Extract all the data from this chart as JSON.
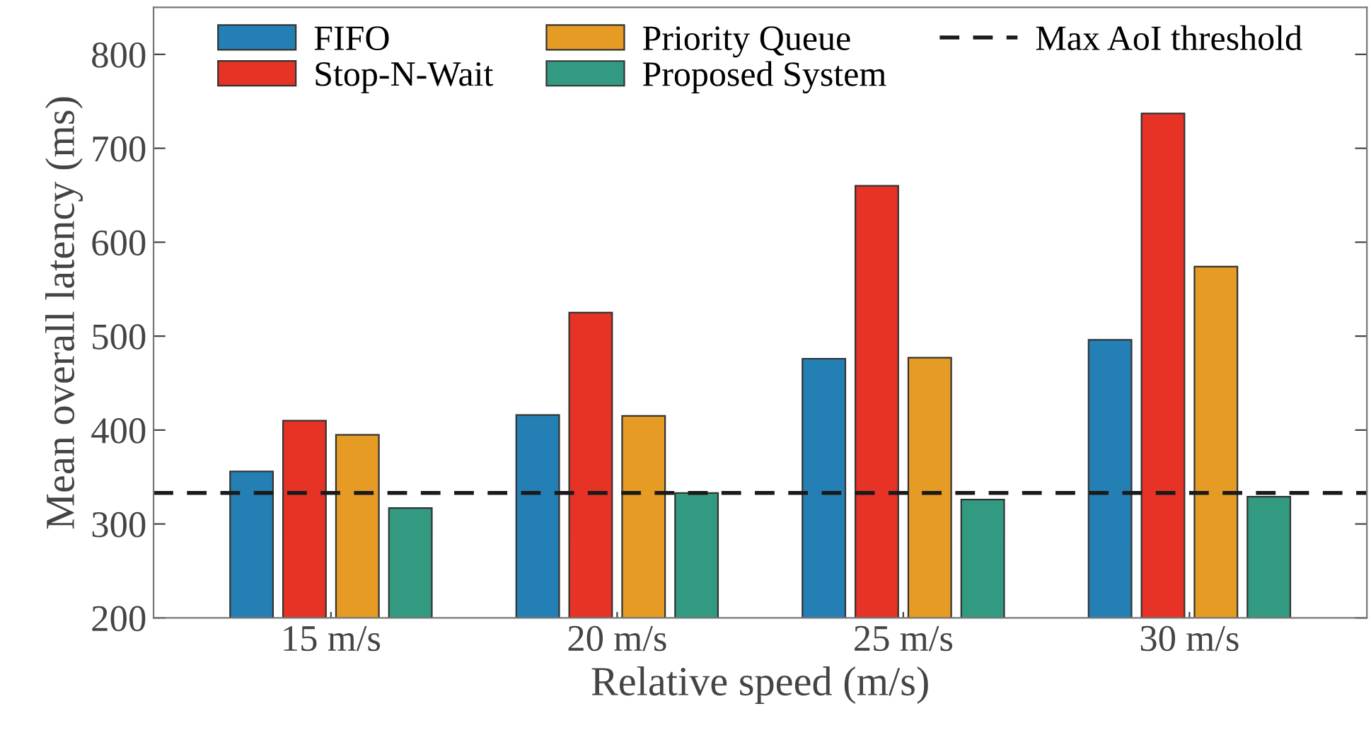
{
  "chart_data": {
    "type": "bar",
    "xlabel": "Relative speed (m/s)",
    "ylabel": "Mean overall latency (ms)",
    "categories": [
      "15 m/s",
      "20 m/s",
      "25 m/s",
      "30 m/s"
    ],
    "series": [
      {
        "name": "FIFO",
        "color": "#2480b4",
        "values": [
          356,
          416,
          476,
          496
        ]
      },
      {
        "name": "Stop-N-Wait",
        "color": "#e63325",
        "values": [
          410,
          525,
          660,
          737
        ]
      },
      {
        "name": "Priority Queue",
        "color": "#e59b24",
        "values": [
          395,
          415,
          477,
          574
        ]
      },
      {
        "name": "Proposed System",
        "color": "#339a82",
        "values": [
          317,
          333,
          326,
          329
        ]
      }
    ],
    "ref_lines": [
      {
        "axis": "y",
        "value": 333,
        "label": "Max AoI threshold",
        "color": "#1a1a1a",
        "line_style": "dashed"
      }
    ],
    "ylim": [
      200,
      850
    ],
    "yticks": [
      200,
      300,
      400,
      500,
      600,
      700,
      800
    ],
    "grid": false,
    "legend": "top"
  }
}
